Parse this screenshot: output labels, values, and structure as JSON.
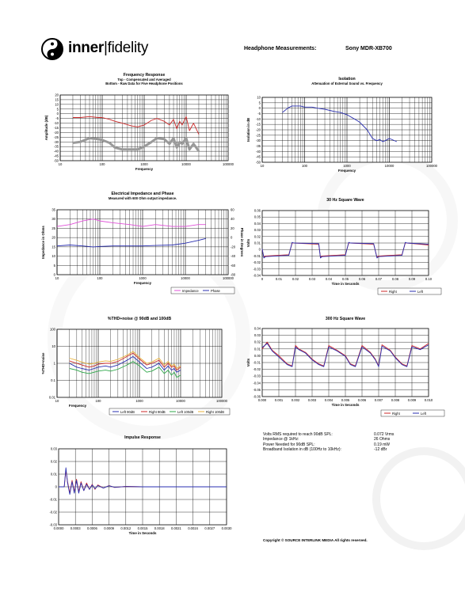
{
  "brand": {
    "name_bold": "inner",
    "name_light": "fidelity"
  },
  "header": {
    "label": "Headphone Measurements:",
    "model": "Sony MDR-XB700"
  },
  "charts": {
    "fr": {
      "title": "Frequency Response",
      "subtitle1": "Top - Compensated and Averaged",
      "subtitle2": "Bottom - Raw Data for Five Headphone Positions",
      "xlabel": "Frequency",
      "ylabel": "Amplitude (dB)",
      "xticks": [
        "10",
        "100",
        "1000",
        "10000",
        "100000"
      ],
      "yticks": [
        "20",
        "15",
        "10",
        "5",
        "0",
        "-5",
        "-10",
        "-15",
        "-20",
        "-25",
        "-30",
        "-35",
        "-40",
        "-45",
        "-50"
      ]
    },
    "iso": {
      "title": "Isolation",
      "subtitle": "Attenuation of External Sound vs. Frequency",
      "xlabel": "Frequency",
      "ylabel": "Isolation in dB",
      "xticks": [
        "10",
        "100",
        "1000",
        "10000",
        "100000"
      ],
      "yticks": [
        "10",
        "5",
        "0",
        "-5",
        "-10",
        "-15",
        "-20",
        "-25",
        "-30",
        "-35",
        "-40",
        "-45",
        "-50"
      ]
    },
    "imp": {
      "title": "Electrical Impedance and Phase",
      "subtitle": "Measured with 600 Ohm output impedance.",
      "xlabel": "Frequency",
      "ylabel": "Impedance in Ohms",
      "y2label": "Phase in Degrees",
      "xticks": [
        "10",
        "100",
        "1000",
        "10000",
        "100000"
      ],
      "yticks": [
        "35",
        "30",
        "25",
        "20",
        "15",
        "10",
        "5",
        "0"
      ],
      "y2ticks": [
        "60",
        "40",
        "20",
        "0",
        "-20",
        "-40",
        "-60",
        "-80"
      ],
      "legend": [
        "Impedance",
        "Phase"
      ]
    },
    "sq30": {
      "title": "30 Hz Square Wave",
      "xlabel": "Time in Seconds",
      "ylabel": "Volts",
      "xticks": [
        "0",
        "0.01",
        "0.02",
        "0.03",
        "0.04",
        "0.05",
        "0.06",
        "0.07",
        "0.08",
        "0.09",
        "0.10"
      ],
      "yticks": [
        "0.06",
        "0.05",
        "0.04",
        "0.03",
        "0.02",
        "0.01",
        "0",
        "-0.01",
        "-0.02",
        "-0.03",
        "-0.04"
      ],
      "legend": [
        "Right",
        "Left"
      ]
    },
    "thd": {
      "title": "%THD+noise @ 90dB and 100dB",
      "xlabel": "Frequency",
      "ylabel": "%THD+noise",
      "xticks": [
        "10",
        "100",
        "1000",
        "10000",
        "100000"
      ],
      "yticks": [
        "100",
        "10",
        "1",
        "0.1",
        "0.01"
      ],
      "legend": [
        "Left 90dB",
        "Right 90dB",
        "Left 100dB",
        "Right 100dB"
      ]
    },
    "sq300": {
      "title": "300 Hz Square Wave",
      "xlabel": "Time in Seconds",
      "ylabel": "Volts",
      "xticks": [
        "0.000",
        "0.001",
        "0.002",
        "0.003",
        "0.004",
        "0.005",
        "0.006",
        "0.007",
        "0.008",
        "0.009",
        "0.010"
      ],
      "yticks": [
        "0.04",
        "0.03",
        "0.02",
        "0.01",
        "0.00",
        "-0.01",
        "-0.02",
        "-0.03",
        "-0.04",
        "-0.05",
        "-0.06"
      ],
      "legend": [
        "Right",
        "Left"
      ]
    },
    "ir": {
      "title": "Impulse Response",
      "xlabel": "Time in Seconds",
      "xticks": [
        "0.0000",
        "0.0003",
        "0.0006",
        "0.0009",
        "0.0012",
        "0.0015",
        "0.0018",
        "0.0021",
        "0.0024",
        "0.0027",
        "0.0030"
      ],
      "yticks": [
        "0.03",
        "0.02",
        "0.01",
        "0",
        "-0.01",
        "-0.02",
        "-0.03"
      ]
    }
  },
  "specs": [
    {
      "label": "Volts RMS required to reach 90dB SPL:",
      "value": "0.072  Vrms"
    },
    {
      "label": "Impedance @ 1kHz:",
      "value": "26  Ohms"
    },
    {
      "label": "Power Needed for 90dB SPL:",
      "value": "0.19  mW"
    },
    {
      "label": "Broadband Isolation in dB (100Hz to 10kHz):",
      "value": "-12  dBr"
    }
  ],
  "copyright": "Copyright © SOURCE INTERLINK MEDIA All rights reserved.",
  "colors": {
    "red": "#cc2a2a",
    "blue": "#2a2fb0",
    "magenta": "#e050d8",
    "gray": "#9a9a9a",
    "green": "#2ea84a",
    "orange": "#e8b23a",
    "watermark": "#eeeeee"
  },
  "chart_data": [
    {
      "type": "line",
      "title": "Frequency Response",
      "xscale": "log",
      "xlim": [
        10,
        100000
      ],
      "ylim": [
        -50,
        20
      ],
      "series": [
        {
          "color": "red",
          "x": [
            20,
            30,
            50,
            80,
            100,
            150,
            200,
            300,
            500,
            700,
            1000,
            1500,
            2000,
            3000,
            4000,
            5000,
            6000,
            7000,
            8000,
            10000,
            12000,
            15000,
            20000
          ],
          "values": [
            -4,
            -4,
            -3,
            -4,
            -4,
            -6,
            -8,
            -10,
            -13,
            -14,
            -12,
            -7,
            -5,
            -8,
            -12,
            -6,
            -16,
            -8,
            -12,
            -3,
            -18,
            -10,
            -22
          ]
        },
        {
          "color": "gray",
          "x": [
            20,
            30,
            50,
            80,
            100,
            150,
            200,
            300,
            500,
            700,
            1000,
            1500,
            2000,
            3000,
            4000,
            5000,
            6000,
            7000,
            8000,
            10000,
            12000,
            15000,
            20000
          ],
          "values": [
            -31,
            -30,
            -26,
            -27,
            -28,
            -31,
            -36,
            -38,
            -38,
            -38,
            -35,
            -30,
            -26,
            -27,
            -32,
            -26,
            -36,
            -30,
            -32,
            -26,
            -38,
            -32,
            -40
          ]
        }
      ]
    },
    {
      "type": "line",
      "title": "Isolation",
      "xscale": "log",
      "xlim": [
        10,
        100000
      ],
      "ylim": [
        -50,
        10
      ],
      "series": [
        {
          "color": "blue",
          "x": [
            30,
            40,
            50,
            60,
            80,
            100,
            150,
            200,
            300,
            500,
            700,
            1000,
            1500,
            2000,
            3000,
            4000,
            5000,
            6000,
            7000,
            8000,
            10000,
            15000
          ],
          "values": [
            -4,
            0,
            2,
            2,
            2,
            1,
            1,
            0,
            -1,
            -3,
            -4,
            -6,
            -10,
            -13,
            -20,
            -28,
            -30,
            -29,
            -31,
            -30,
            -28,
            -31
          ]
        }
      ]
    },
    {
      "type": "line",
      "title": "Electrical Impedance and Phase",
      "xscale": "log",
      "xlim": [
        10,
        100000
      ],
      "ylim": [
        0,
        35
      ],
      "y2lim": [
        -80,
        60
      ],
      "series": [
        {
          "name": "Impedance",
          "color": "magenta",
          "axis": "left",
          "x": [
            10,
            20,
            40,
            70,
            100,
            200,
            500,
            1000,
            2000,
            5000,
            10000,
            20000,
            30000
          ],
          "values": [
            26,
            27,
            29,
            30,
            29,
            28,
            27,
            26,
            27,
            26,
            26,
            27,
            27
          ]
        },
        {
          "name": "Phase",
          "color": "blue",
          "axis": "right",
          "x": [
            10,
            20,
            40,
            70,
            100,
            200,
            500,
            1000,
            2000,
            5000,
            10000,
            20000,
            30000
          ],
          "values": [
            -18,
            -16,
            -18,
            -20,
            -19,
            -18,
            -18,
            -18,
            -17,
            -16,
            -12,
            -6,
            -2
          ]
        }
      ]
    },
    {
      "type": "line",
      "title": "30 Hz Square Wave",
      "xlim": [
        0,
        0.1
      ],
      "ylim": [
        -0.04,
        0.06
      ],
      "series": [
        {
          "name": "Right",
          "color": "red",
          "x": [
            0,
            0.001,
            0.002,
            0.016,
            0.018,
            0.019,
            0.034,
            0.035,
            0.036,
            0.05,
            0.052,
            0.053,
            0.067,
            0.069,
            0.07,
            0.084,
            0.086,
            0.087,
            0.1
          ],
          "values": [
            0,
            -0.012,
            -0.01,
            -0.008,
            0.01,
            0.01,
            0.008,
            -0.012,
            -0.01,
            -0.008,
            0.01,
            0.01,
            0.008,
            -0.012,
            -0.01,
            -0.008,
            0.01,
            0.01,
            0.007
          ]
        },
        {
          "name": "Left",
          "color": "blue",
          "x": [
            0,
            0.001,
            0.002,
            0.016,
            0.018,
            0.019,
            0.034,
            0.035,
            0.036,
            0.05,
            0.052,
            0.053,
            0.067,
            0.069,
            0.07,
            0.084,
            0.086,
            0.087,
            0.1
          ],
          "values": [
            0.001,
            -0.013,
            -0.011,
            -0.009,
            0.011,
            0.01,
            0.009,
            -0.013,
            -0.011,
            -0.009,
            0.011,
            0.01,
            0.009,
            -0.013,
            -0.011,
            -0.009,
            0.011,
            0.01,
            0.008
          ]
        }
      ]
    },
    {
      "type": "line",
      "title": "%THD+noise @ 90dB and 100dB",
      "xscale": "log",
      "yscale": "log",
      "xlim": [
        10,
        100000
      ],
      "ylim": [
        0.01,
        100
      ],
      "series": [
        {
          "name": "Left 90dB",
          "color": "blue",
          "x": [
            20,
            30,
            40,
            60,
            80,
            100,
            150,
            200,
            300,
            500,
            700,
            1000,
            1500,
            2000,
            3000,
            4000,
            5000,
            6000,
            7000,
            8000,
            10000
          ],
          "values": [
            1.0,
            0.6,
            0.5,
            0.4,
            0.5,
            0.6,
            0.7,
            0.6,
            0.8,
            1.5,
            2.5,
            1.2,
            0.5,
            0.6,
            1.0,
            0.4,
            0.7,
            0.4,
            0.5,
            0.3,
            0.4
          ]
        },
        {
          "name": "Right 90dB",
          "color": "red",
          "x": [
            20,
            30,
            40,
            60,
            80,
            100,
            150,
            200,
            300,
            500,
            700,
            1000,
            1500,
            2000,
            3000,
            4000,
            5000,
            6000,
            7000,
            8000,
            10000
          ],
          "values": [
            1.4,
            1.0,
            0.8,
            0.6,
            0.7,
            0.9,
            1.0,
            1.0,
            1.3,
            2.5,
            4.0,
            1.8,
            0.8,
            1.0,
            1.5,
            0.6,
            1.0,
            0.6,
            0.7,
            0.4,
            0.6
          ]
        },
        {
          "name": "Left 100dB",
          "color": "green",
          "x": [
            20,
            30,
            40,
            60,
            80,
            100,
            150,
            200,
            300,
            500,
            700,
            1000,
            1500,
            2000,
            3000,
            4000,
            5000,
            6000,
            7000,
            8000,
            10000
          ],
          "values": [
            0.5,
            0.4,
            0.3,
            0.25,
            0.3,
            0.35,
            0.4,
            0.35,
            0.45,
            0.8,
            1.3,
            0.7,
            0.3,
            0.35,
            0.6,
            0.25,
            0.4,
            0.2,
            0.3,
            0.15,
            0.2
          ]
        },
        {
          "name": "Right 100dB",
          "color": "orange",
          "x": [
            20,
            30,
            40,
            60,
            80,
            100,
            150,
            200,
            300,
            500,
            700,
            1000,
            1500,
            2000,
            3000,
            4000,
            5000,
            6000,
            7000,
            8000,
            10000
          ],
          "values": [
            2.0,
            1.5,
            1.2,
            0.9,
            1.0,
            1.2,
            1.4,
            1.3,
            1.7,
            3.0,
            5.0,
            2.2,
            1.0,
            1.2,
            2.0,
            0.8,
            1.3,
            0.7,
            0.9,
            0.5,
            0.7
          ]
        }
      ]
    },
    {
      "type": "line",
      "title": "300 Hz Square Wave",
      "xlim": [
        0,
        0.01
      ],
      "ylim": [
        -0.06,
        0.04
      ],
      "series": [
        {
          "name": "Right",
          "color": "red",
          "x": [
            0,
            0.0003,
            0.0006,
            0.001,
            0.0015,
            0.0018,
            0.002,
            0.0022,
            0.0026,
            0.003,
            0.0034,
            0.0037,
            0.004,
            0.0045,
            0.005,
            0.0053,
            0.0056,
            0.006,
            0.0065,
            0.0068,
            0.007,
            0.0072,
            0.0077,
            0.008,
            0.0084,
            0.0087,
            0.009,
            0.0095,
            0.01
          ],
          "values": [
            0.01,
            0.02,
            0.008,
            0.0,
            -0.012,
            -0.015,
            0.015,
            0.01,
            0.005,
            -0.005,
            -0.012,
            -0.015,
            0.015,
            0.008,
            0.0,
            -0.012,
            -0.015,
            0.015,
            0.005,
            -0.005,
            -0.015,
            0.016,
            0.008,
            -0.002,
            -0.012,
            -0.015,
            0.015,
            0.01,
            0.018
          ]
        },
        {
          "name": "Left",
          "color": "blue",
          "x": [
            0,
            0.0003,
            0.0006,
            0.001,
            0.0015,
            0.0018,
            0.002,
            0.0022,
            0.0026,
            0.003,
            0.0034,
            0.0037,
            0.004,
            0.0045,
            0.005,
            0.0053,
            0.0056,
            0.006,
            0.0065,
            0.0068,
            0.007,
            0.0072,
            0.0077,
            0.008,
            0.0084,
            0.0087,
            0.009,
            0.0095,
            0.01
          ],
          "values": [
            0.012,
            0.018,
            0.007,
            -0.002,
            -0.013,
            -0.016,
            0.013,
            0.009,
            0.004,
            -0.006,
            -0.013,
            -0.016,
            0.013,
            0.007,
            -0.001,
            -0.013,
            -0.016,
            0.013,
            0.004,
            -0.006,
            -0.016,
            0.014,
            0.007,
            -0.003,
            -0.013,
            -0.016,
            0.013,
            0.009,
            0.016
          ]
        }
      ]
    },
    {
      "type": "line",
      "title": "Impulse Response",
      "xlim": [
        0,
        0.003
      ],
      "ylim": [
        -0.03,
        0.03
      ],
      "series": [
        {
          "color": "red",
          "x": [
            0,
            0.0001,
            0.00013,
            0.00016,
            0.0002,
            0.00024,
            0.00028,
            0.00032,
            0.00036,
            0.0004,
            0.00045,
            0.0005,
            0.00055,
            0.0006,
            0.00065,
            0.0007,
            0.0008,
            0.0009,
            0.001,
            0.0012,
            0.0015,
            0.003
          ],
          "values": [
            0,
            0,
            0.013,
            0.004,
            -0.005,
            0.005,
            -0.004,
            0.006,
            -0.004,
            0.004,
            -0.003,
            0.003,
            -0.002,
            0.002,
            -0.002,
            0.0015,
            -0.001,
            0.001,
            -0.0005,
            0.0003,
            0,
            0
          ]
        },
        {
          "color": "blue",
          "x": [
            0,
            0.0001,
            0.00013,
            0.00016,
            0.0002,
            0.00024,
            0.00028,
            0.00032,
            0.00036,
            0.0004,
            0.00045,
            0.0005,
            0.00055,
            0.0006,
            0.00065,
            0.0007,
            0.0008,
            0.0009,
            0.001,
            0.0012,
            0.0015,
            0.003
          ],
          "values": [
            0,
            0,
            0.015,
            0.003,
            -0.006,
            0.004,
            -0.005,
            0.005,
            -0.005,
            0.003,
            -0.003,
            0.002,
            -0.002,
            0.0015,
            -0.0015,
            0.001,
            -0.001,
            0.0008,
            -0.0004,
            0.0002,
            0,
            0
          ]
        }
      ]
    }
  ]
}
